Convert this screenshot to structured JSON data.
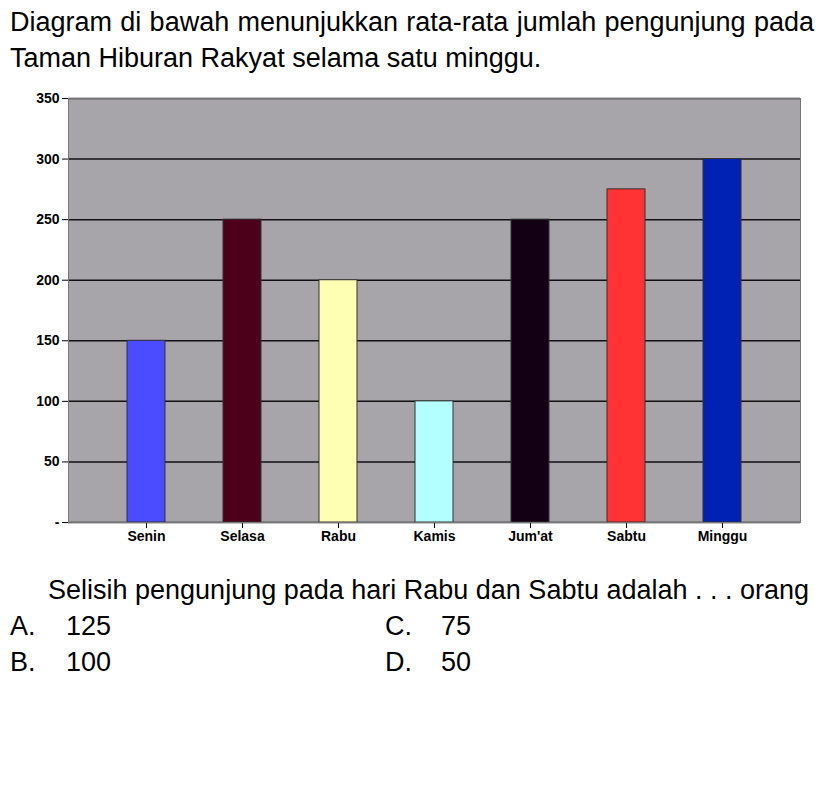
{
  "intro": "Diagram di bawah menunjukkan rata-rata jumlah pengunjung pada Taman Hiburan Rakyat selama satu minggu.",
  "chart_data": {
    "type": "bar",
    "categories": [
      "Senin",
      "Selasa",
      "Rabu",
      "Kamis",
      "Jum'at",
      "Sabtu",
      "Minggu"
    ],
    "values": [
      150,
      250,
      200,
      100,
      250,
      275,
      300
    ],
    "colors": [
      "#4b4bff",
      "#4d0019",
      "#ffffb3",
      "#b3ffff",
      "#140014",
      "#ff3333",
      "#0022b4"
    ],
    "ylim": [
      0,
      350
    ],
    "yticks": [
      {
        "value": 0,
        "label": "-"
      },
      50,
      100,
      150,
      200,
      250,
      300,
      350
    ],
    "grid": true
  },
  "question": "Selisih pengunjung pada hari Rabu dan Sabtu adalah . . . orang",
  "options": [
    {
      "label": "A.",
      "text": "125"
    },
    {
      "label": "C.",
      "text": "75"
    },
    {
      "label": "B.",
      "text": "100"
    },
    {
      "label": "D.",
      "text": "50"
    }
  ]
}
